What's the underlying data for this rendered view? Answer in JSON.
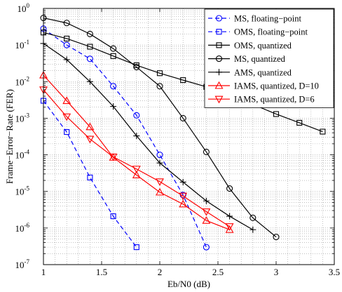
{
  "chart_data": {
    "type": "line",
    "title": "",
    "xlabel": "Eb/N0 (dB)",
    "ylabel": "Frame−Error−Rate (FER)",
    "xscale": "linear",
    "yscale": "log",
    "xlim": [
      1,
      3.5
    ],
    "ylim": [
      1e-07,
      1
    ],
    "grid": true,
    "legend_position": "top-right",
    "xticks": [
      {
        "value": 1,
        "label": "1"
      },
      {
        "value": 1.5,
        "label": "1.5"
      },
      {
        "value": 2,
        "label": "2"
      },
      {
        "value": 2.5,
        "label": "2.5"
      },
      {
        "value": 3,
        "label": "3"
      },
      {
        "value": 3.5,
        "label": "3.5"
      }
    ],
    "yticks": [
      {
        "value": 1,
        "base": "10",
        "exp": "0"
      },
      {
        "value": 0.1,
        "base": "10",
        "exp": "-1"
      },
      {
        "value": 0.01,
        "base": "10",
        "exp": "-2"
      },
      {
        "value": 0.001,
        "base": "10",
        "exp": "-3"
      },
      {
        "value": 0.0001,
        "base": "10",
        "exp": "-4"
      },
      {
        "value": 1e-05,
        "base": "10",
        "exp": "-5"
      },
      {
        "value": 1e-06,
        "base": "10",
        "exp": "-6"
      },
      {
        "value": 1e-07,
        "base": "10",
        "exp": "-7"
      }
    ],
    "series": [
      {
        "name": "MS, floating−point",
        "color": "#0000ff",
        "dash": "dashed",
        "marker": "circle",
        "x": [
          1,
          1.2,
          1.4,
          1.6,
          1.8,
          2.0,
          2.2,
          2.4
        ],
        "y": [
          0.28,
          0.1,
          0.042,
          0.0075,
          0.0012,
          0.0001,
          8e-06,
          3e-07
        ]
      },
      {
        "name": "OMS, floating−point",
        "color": "#0000ff",
        "dash": "dashed",
        "marker": "square",
        "x": [
          1,
          1.2,
          1.4,
          1.6,
          1.8
        ],
        "y": [
          0.003,
          0.00042,
          2.4e-05,
          2.1e-06,
          3e-07
        ]
      },
      {
        "name": "OMS, quantized",
        "color": "#000000",
        "dash": "solid",
        "marker": "square",
        "x": [
          1,
          1.2,
          1.4,
          1.6,
          1.8,
          2.0,
          2.2,
          2.4,
          2.6,
          2.8,
          3.0,
          3.2,
          3.4
        ],
        "y": [
          0.22,
          0.15,
          0.09,
          0.05,
          0.028,
          0.017,
          0.011,
          0.0072,
          0.0043,
          0.0024,
          0.0013,
          0.00075,
          0.00043
        ]
      },
      {
        "name": "MS, quantized",
        "color": "#000000",
        "dash": "solid",
        "marker": "circle",
        "x": [
          1,
          1.2,
          1.4,
          1.6,
          1.8,
          2.0,
          2.2,
          2.4,
          2.6,
          2.8,
          3.0
        ],
        "y": [
          0.55,
          0.4,
          0.2,
          0.08,
          0.025,
          0.0075,
          0.001,
          0.00012,
          1.2e-05,
          1.9e-06,
          5.7e-07
        ]
      },
      {
        "name": "AMS, quantized",
        "color": "#000000",
        "dash": "solid",
        "marker": "plus",
        "x": [
          1,
          1.2,
          1.4,
          1.6,
          1.8,
          2.0,
          2.2,
          2.4,
          2.6,
          2.8
        ],
        "y": [
          0.11,
          0.04,
          0.01,
          0.0021,
          0.00033,
          6e-05,
          1.8e-05,
          5.5e-06,
          2.1e-06,
          9e-07
        ]
      },
      {
        "name": "IAMS, quantized, D=10",
        "color": "#ff0000",
        "dash": "solid",
        "marker": "triangle-up",
        "x": [
          1,
          1.2,
          1.4,
          1.6,
          1.8,
          2.0,
          2.2,
          2.4,
          2.6
        ],
        "y": [
          0.015,
          0.003,
          0.00058,
          8.5e-05,
          2.8e-05,
          9.5e-06,
          4.5e-06,
          1.6e-06,
          9e-07
        ]
      },
      {
        "name": "IAMS, quantized, D=6",
        "color": "#ff0000",
        "dash": "solid",
        "marker": "triangle-down",
        "x": [
          1,
          1.2,
          1.4,
          1.6,
          1.8,
          2.0,
          2.2,
          2.4,
          2.6
        ],
        "y": [
          0.006,
          0.0011,
          0.00027,
          8.8e-05,
          4.1e-05,
          1.85e-05,
          7.5e-06,
          2.8e-06,
          1.1e-06
        ]
      }
    ]
  }
}
